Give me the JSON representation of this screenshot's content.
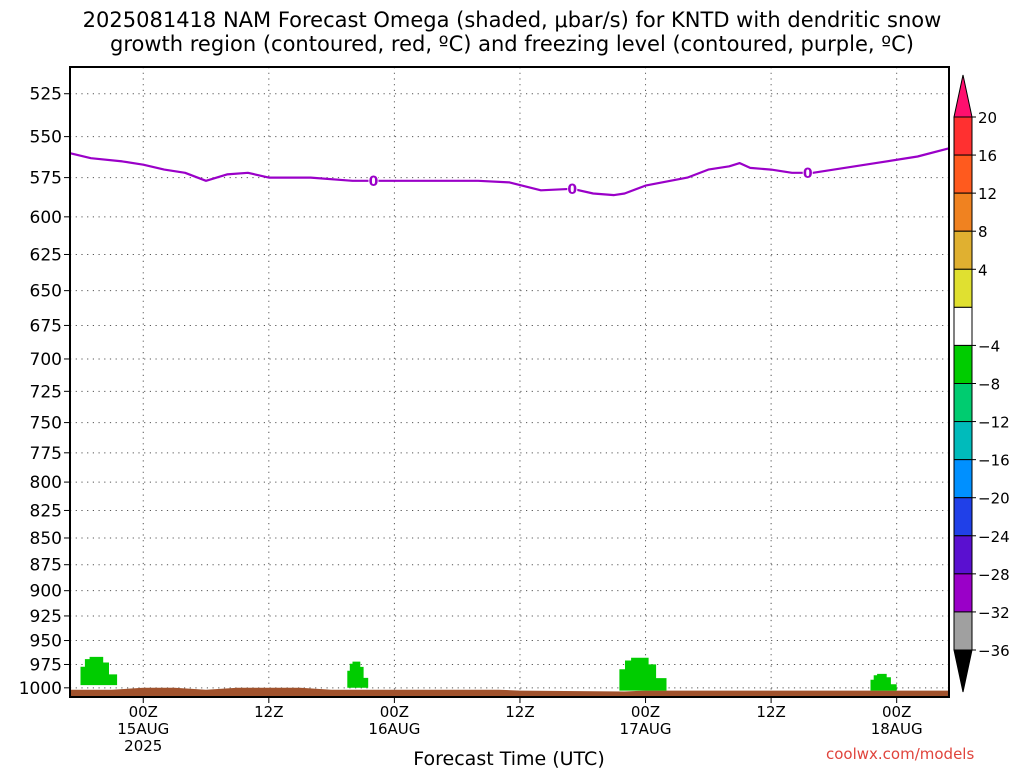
{
  "title": {
    "line1": "2025081418 NAM Forecast Omega (shaded, μbar/s) for KNTD with dendritic snow",
    "line2": "growth region (contoured, red, ºC) and freezing level (contoured, purple, ºC)"
  },
  "credit": "coolwx.com/models",
  "chart_data": {
    "type": "heatmap",
    "title": "2025081418 NAM Forecast Omega (shaded, μbar/s) for KNTD with dendritic snow growth region (contoured, red, ºC) and freezing level (contoured, purple, ºC)",
    "xlabel": "Forecast Time (UTC)",
    "ylabel": "",
    "x_range_hours": [
      -7,
      77
    ],
    "y_scale": "log-pressure",
    "y_range_mb": [
      510,
      1010
    ],
    "y_ticks": [
      525,
      550,
      575,
      600,
      625,
      650,
      675,
      700,
      725,
      750,
      775,
      800,
      825,
      850,
      875,
      900,
      925,
      950,
      975,
      1000
    ],
    "grid": true,
    "x_ticks": [
      {
        "hour": 0,
        "lines": [
          "00Z",
          "15AUG",
          "2025"
        ]
      },
      {
        "hour": 12,
        "lines": [
          "12Z"
        ]
      },
      {
        "hour": 24,
        "lines": [
          "00Z",
          "16AUG"
        ]
      },
      {
        "hour": 36,
        "lines": [
          "12Z"
        ]
      },
      {
        "hour": 48,
        "lines": [
          "00Z",
          "17AUG"
        ]
      },
      {
        "hour": 60,
        "lines": [
          "12Z"
        ]
      },
      {
        "hour": 72,
        "lines": [
          "00Z",
          "18AUG"
        ]
      }
    ],
    "freezing_level": {
      "label": "0",
      "color": "#9a00c8",
      "label_hours": [
        22,
        41,
        63.5
      ],
      "points": [
        [
          -7,
          560
        ],
        [
          -5,
          563
        ],
        [
          -2,
          565
        ],
        [
          0,
          567
        ],
        [
          2,
          570
        ],
        [
          4,
          572
        ],
        [
          6,
          577
        ],
        [
          8,
          573
        ],
        [
          10,
          572
        ],
        [
          12,
          575
        ],
        [
          16,
          575
        ],
        [
          20,
          577
        ],
        [
          24,
          577
        ],
        [
          28,
          577
        ],
        [
          32,
          577
        ],
        [
          35,
          578
        ],
        [
          38,
          583
        ],
        [
          41,
          582
        ],
        [
          43,
          585
        ],
        [
          45,
          586
        ],
        [
          46,
          585
        ],
        [
          48,
          580
        ],
        [
          52,
          575
        ],
        [
          54,
          570
        ],
        [
          56,
          568
        ],
        [
          57,
          566
        ],
        [
          58,
          569
        ],
        [
          60,
          570
        ],
        [
          62,
          572
        ],
        [
          64,
          572
        ],
        [
          66,
          570
        ],
        [
          70,
          566
        ],
        [
          74,
          562
        ],
        [
          77,
          557
        ]
      ]
    },
    "terrain": {
      "color": "#a0522d",
      "top_mb": [
        [
          -7,
          1002
        ],
        [
          -3,
          1002
        ],
        [
          0,
          1000
        ],
        [
          3,
          1000
        ],
        [
          6,
          1002
        ],
        [
          9,
          1000
        ],
        [
          15,
          1000
        ],
        [
          18,
          1002
        ],
        [
          34,
          1002
        ],
        [
          36,
          1003
        ],
        [
          46,
          1004
        ],
        [
          48,
          1003
        ],
        [
          77,
          1003
        ]
      ]
    },
    "omega_regions": [
      {
        "color": "#00cc00",
        "value_range": [
          -8,
          -4
        ],
        "hours": [
          -6,
          -2.5
        ],
        "top_mb": 967,
        "bottom_mb": 997
      },
      {
        "color": "#00cc00",
        "value_range": [
          -8,
          -4
        ],
        "hours": [
          19.5,
          21.5
        ],
        "top_mb": 972,
        "bottom_mb": 1000
      },
      {
        "color": "#00cc00",
        "value_range": [
          -8,
          -4
        ],
        "hours": [
          45.5,
          50
        ],
        "top_mb": 968,
        "bottom_mb": 1003
      },
      {
        "color": "#00cc00",
        "value_range": [
          -8,
          -4
        ],
        "hours": [
          69.5,
          72
        ],
        "top_mb": 985,
        "bottom_mb": 1003
      }
    ],
    "colorbar": {
      "labels": [
        "20",
        "16",
        "12",
        "8",
        "4",
        "-4",
        "-8",
        "-12",
        "-16",
        "-20",
        "-24",
        "-28",
        "-32",
        "-36"
      ],
      "bins": [
        {
          "color": "#ff0f6e",
          "range": [
            20,
            24
          ]
        },
        {
          "color": "#ff3030",
          "range": [
            16,
            20
          ]
        },
        {
          "color": "#ff5a1e",
          "range": [
            12,
            16
          ]
        },
        {
          "color": "#f08220",
          "range": [
            8,
            12
          ]
        },
        {
          "color": "#e0b030",
          "range": [
            4,
            8
          ]
        },
        {
          "color": "#e0e030",
          "range": [
            0,
            4
          ]
        },
        {
          "color": "#ffffff",
          "range": [
            -4,
            0
          ]
        },
        {
          "color": "#00cc00",
          "range": [
            -8,
            -4
          ]
        },
        {
          "color": "#00cc70",
          "range": [
            -12,
            -8
          ]
        },
        {
          "color": "#00bbbb",
          "range": [
            -16,
            -12
          ]
        },
        {
          "color": "#0090ff",
          "range": [
            -20,
            -16
          ]
        },
        {
          "color": "#2040e8",
          "range": [
            -24,
            -20
          ]
        },
        {
          "color": "#5a10d0",
          "range": [
            -28,
            -24
          ]
        },
        {
          "color": "#9a00c8",
          "range": [
            -32,
            -28
          ]
        },
        {
          "color": "#a0a0a0",
          "range": [
            -36,
            -32
          ]
        },
        {
          "color": "#000000",
          "range": [
            -40,
            -36
          ]
        }
      ]
    }
  }
}
